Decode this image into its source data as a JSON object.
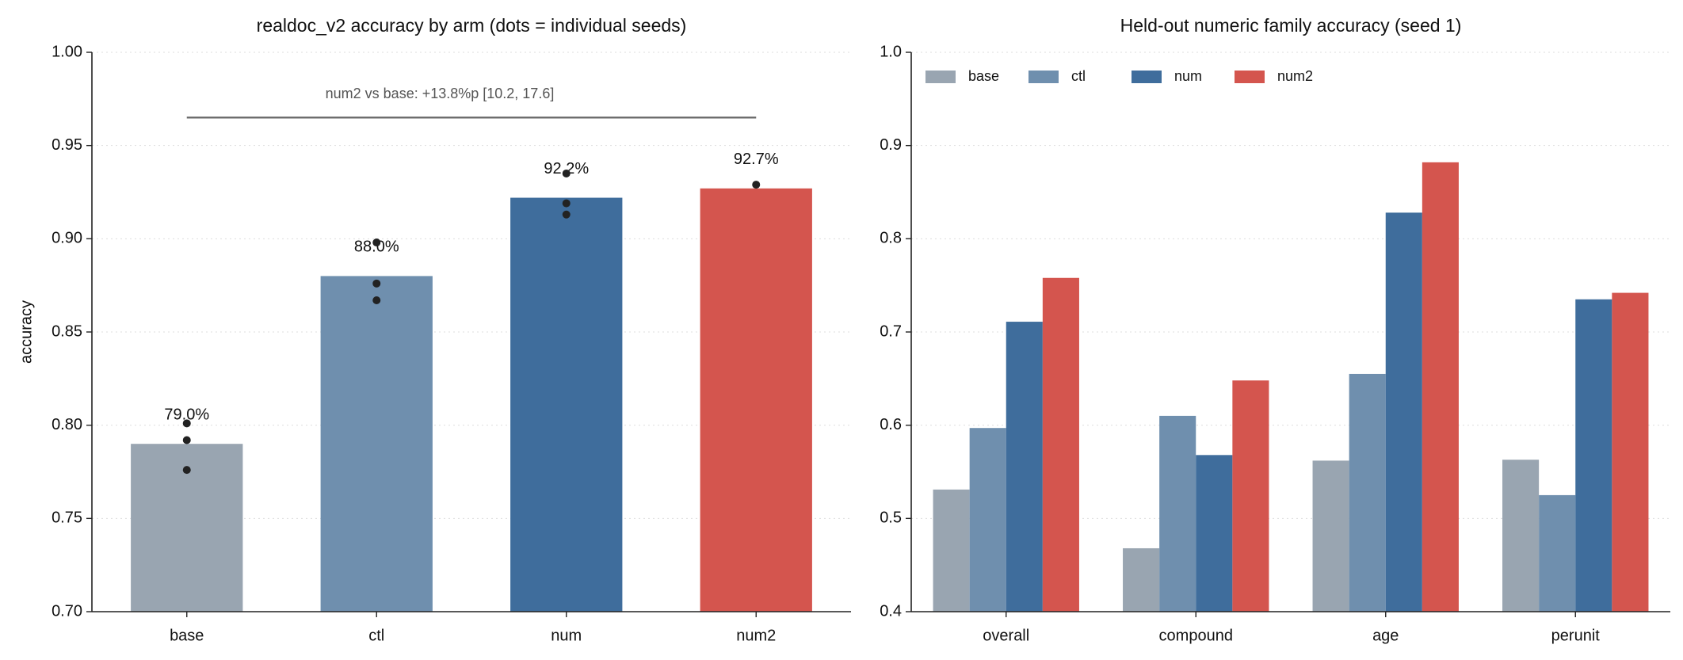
{
  "chart_data": [
    {
      "type": "bar",
      "title": "realdoc_v2 accuracy by arm (dots = individual seeds)",
      "y_label": "accuracy",
      "categories": [
        "base",
        "ctl",
        "num",
        "num2"
      ],
      "values": [
        0.79,
        0.88,
        0.922,
        0.927
      ],
      "value_labels": [
        "79.0%",
        "88.0%",
        "92.2%",
        "92.7%"
      ],
      "colors": [
        "#99a5b1",
        "#6f8fae",
        "#3f6d9c",
        "#d4554e"
      ],
      "seeds": [
        [
          0.801,
          0.792,
          0.776
        ],
        [
          0.898,
          0.876,
          0.867
        ],
        [
          0.935,
          0.919,
          0.913
        ],
        [
          0.929
        ]
      ],
      "annotation": "num2 vs base: +13.8%p [10.2, 17.6]",
      "annotation_y": 0.965,
      "ylim": [
        0.7,
        1.0
      ],
      "yticks": [
        {
          "value": 0.7,
          "label": "0.70"
        },
        {
          "value": 0.75,
          "label": "0.75"
        },
        {
          "value": 0.8,
          "label": "0.80"
        },
        {
          "value": 0.85,
          "label": "0.85"
        },
        {
          "value": 0.9,
          "label": "0.90"
        },
        {
          "value": 0.95,
          "label": "0.95"
        },
        {
          "value": 1.0,
          "label": "1.00"
        }
      ],
      "grid": true
    },
    {
      "type": "grouped_bar",
      "title": "Held-out numeric family accuracy (seed 1)",
      "categories": [
        "overall",
        "compound",
        "age",
        "perunit"
      ],
      "series": [
        {
          "name": "base",
          "color": "#99a5b1",
          "values": [
            0.531,
            0.468,
            0.562,
            0.563
          ]
        },
        {
          "name": "ctl",
          "color": "#6f8fae",
          "values": [
            0.597,
            0.61,
            0.655,
            0.525
          ]
        },
        {
          "name": "num",
          "color": "#3f6d9c",
          "values": [
            0.711,
            0.568,
            0.828,
            0.735
          ]
        },
        {
          "name": "num2",
          "color": "#d4554e",
          "values": [
            0.758,
            0.648,
            0.882,
            0.742
          ]
        }
      ],
      "ylim": [
        0.4,
        1.0
      ],
      "yticks": [
        0.4,
        0.5,
        0.6,
        0.7,
        0.8,
        0.9,
        {
          "value": 1.0,
          "label": "1.0"
        }
      ],
      "legend": "upper left",
      "grid": true
    }
  ]
}
